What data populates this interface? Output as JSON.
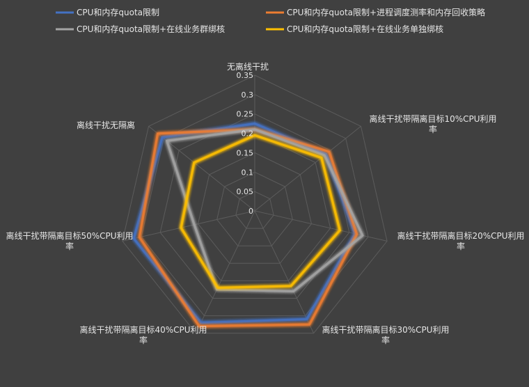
{
  "chart_data": {
    "type": "radar",
    "axes": [
      [
        "无离线干扰"
      ],
      [
        "离线干扰带隔离目标10%CPU利用",
        "率"
      ],
      [
        "离线干扰带隔离目标20%CPU利用",
        "率"
      ],
      [
        "离线干扰带隔离目标30%CPU利用",
        "率"
      ],
      [
        "离线干扰带隔离目标40%CPU利用",
        "率"
      ],
      [
        "离线干扰带隔离目标50%CPU利用",
        "率"
      ],
      [
        "离线干扰无隔离"
      ]
    ],
    "ticks": [
      "0",
      "0.05",
      "0.1",
      "0.15",
      "0.2",
      "0.25",
      "0.3",
      "0.35"
    ],
    "rmax": 0.35,
    "grid": true,
    "legend_position": "top",
    "series": [
      {
        "name": "CPU和内存quota限制",
        "color": "#4472c4",
        "values": [
          0.225,
          0.235,
          0.265,
          0.31,
          0.32,
          0.32,
          0.305
        ]
      },
      {
        "name": "CPU和内存quota限制+进程调度测率和内存回收策略",
        "color": "#ed7d31",
        "values": [
          0.21,
          0.245,
          0.27,
          0.325,
          0.33,
          0.305,
          0.32
        ]
      },
      {
        "name": "CPU和内存quota限制+在线业务群绑核",
        "color": "#a5a5a5",
        "values": [
          0.21,
          0.23,
          0.285,
          0.23,
          0.225,
          0.16,
          0.29
        ]
      },
      {
        "name": "CPU和内存quota限制+在线业务单独绑核",
        "color": "#ffc000",
        "values": [
          0.195,
          0.22,
          0.225,
          0.215,
          0.22,
          0.195,
          0.2
        ]
      }
    ]
  }
}
